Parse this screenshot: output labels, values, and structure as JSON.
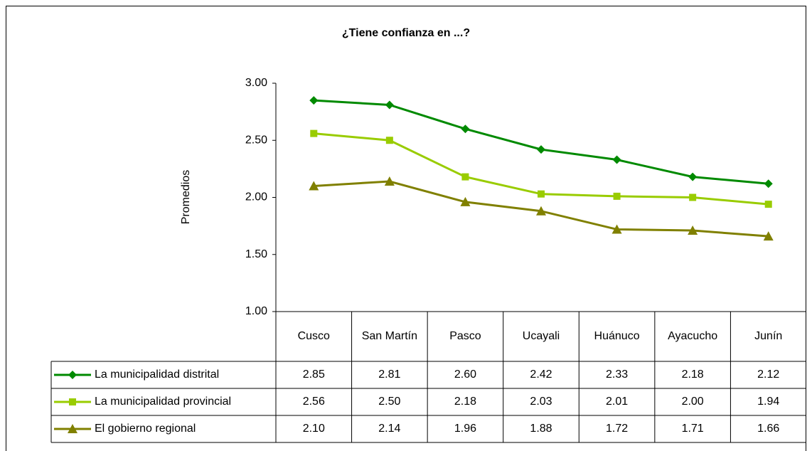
{
  "chart_data": {
    "type": "line",
    "title": "¿Tiene confianza en ...?",
    "y_label": "Promedios",
    "categories": [
      "Cusco",
      "San Martín",
      "Pasco",
      "Ucayali",
      "Huánuco",
      "Ayacucho",
      "Junín"
    ],
    "series": [
      {
        "name": "La municipalidad distrital",
        "color": "#008a00",
        "marker": "diamond",
        "values": [
          2.85,
          2.81,
          2.6,
          2.42,
          2.33,
          2.18,
          2.12
        ],
        "value_labels": [
          "2.85",
          "2.81",
          "2.60",
          "2.42",
          "2.33",
          "2.18",
          "2.12"
        ]
      },
      {
        "name": "La municipalidad provincial",
        "color": "#99cc00",
        "marker": "square",
        "values": [
          2.56,
          2.5,
          2.18,
          2.03,
          2.01,
          2.0,
          1.94
        ],
        "value_labels": [
          "2.56",
          "2.50",
          "2.18",
          "2.03",
          "2.01",
          "2.00",
          "1.94"
        ]
      },
      {
        "name": "El gobierno regional",
        "color": "#808000",
        "marker": "triangle",
        "values": [
          2.1,
          2.14,
          1.96,
          1.88,
          1.72,
          1.71,
          1.66
        ],
        "value_labels": [
          "2.10",
          "2.14",
          "1.96",
          "1.88",
          "1.72",
          "1.71",
          "1.66"
        ]
      }
    ],
    "ylim": [
      1,
      3
    ],
    "yticks": [
      {
        "value": 1,
        "label": "1.00"
      },
      {
        "value": 1.5,
        "label": "1.50"
      },
      {
        "value": 2,
        "label": "2.00"
      },
      {
        "value": 2.5,
        "label": "2.50"
      },
      {
        "value": 3,
        "label": "3.00"
      }
    ],
    "grid": false
  }
}
